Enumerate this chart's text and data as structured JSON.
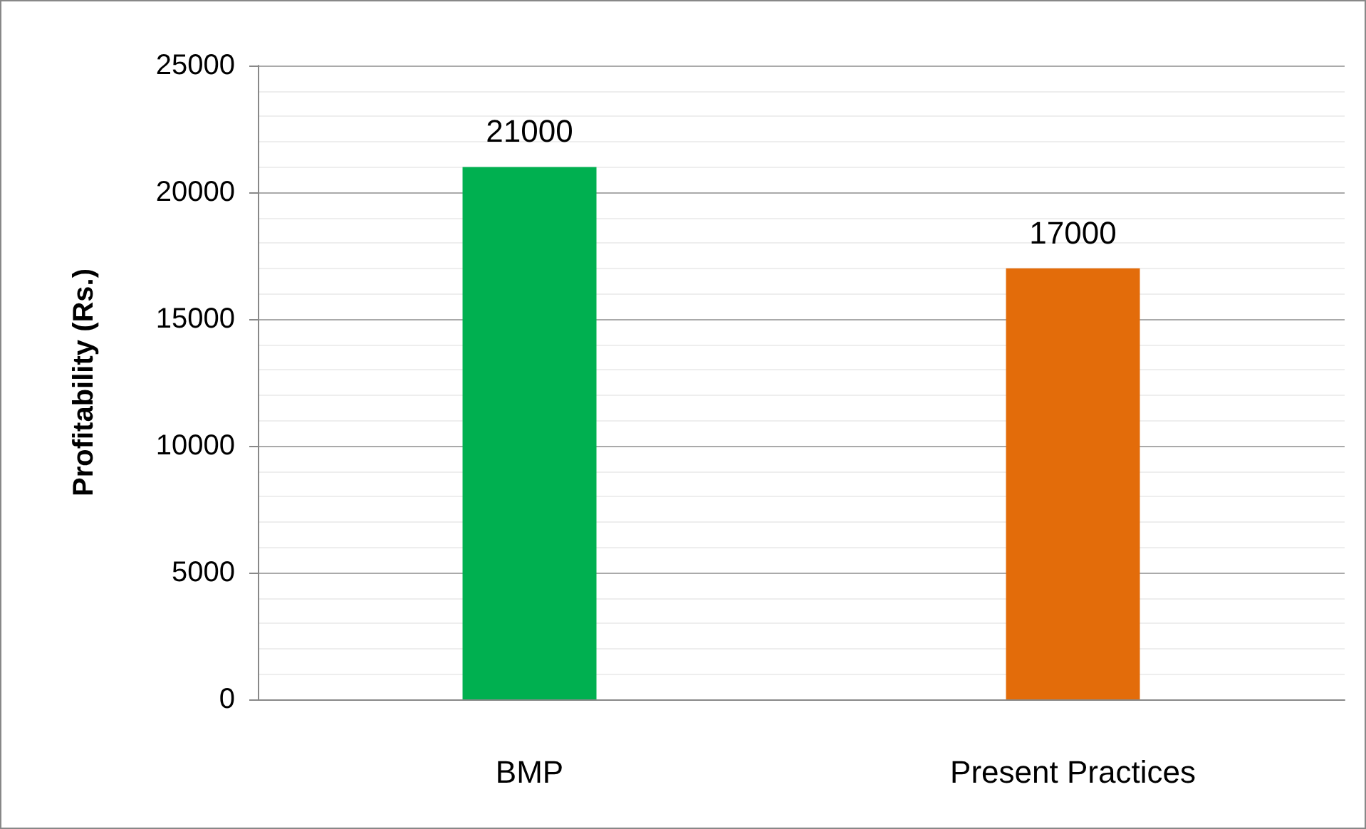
{
  "chart_data": {
    "type": "bar",
    "ylabel": "Profitability (Rs.)",
    "categories": [
      "BMP",
      "Present Practices"
    ],
    "values": [
      21000,
      17000
    ],
    "colors": [
      "#00b050",
      "#e36c0a"
    ],
    "ylim": [
      0,
      25000
    ],
    "yticks": [
      0,
      5000,
      10000,
      15000,
      20000,
      25000
    ],
    "grid": true,
    "data_labels": true
  }
}
